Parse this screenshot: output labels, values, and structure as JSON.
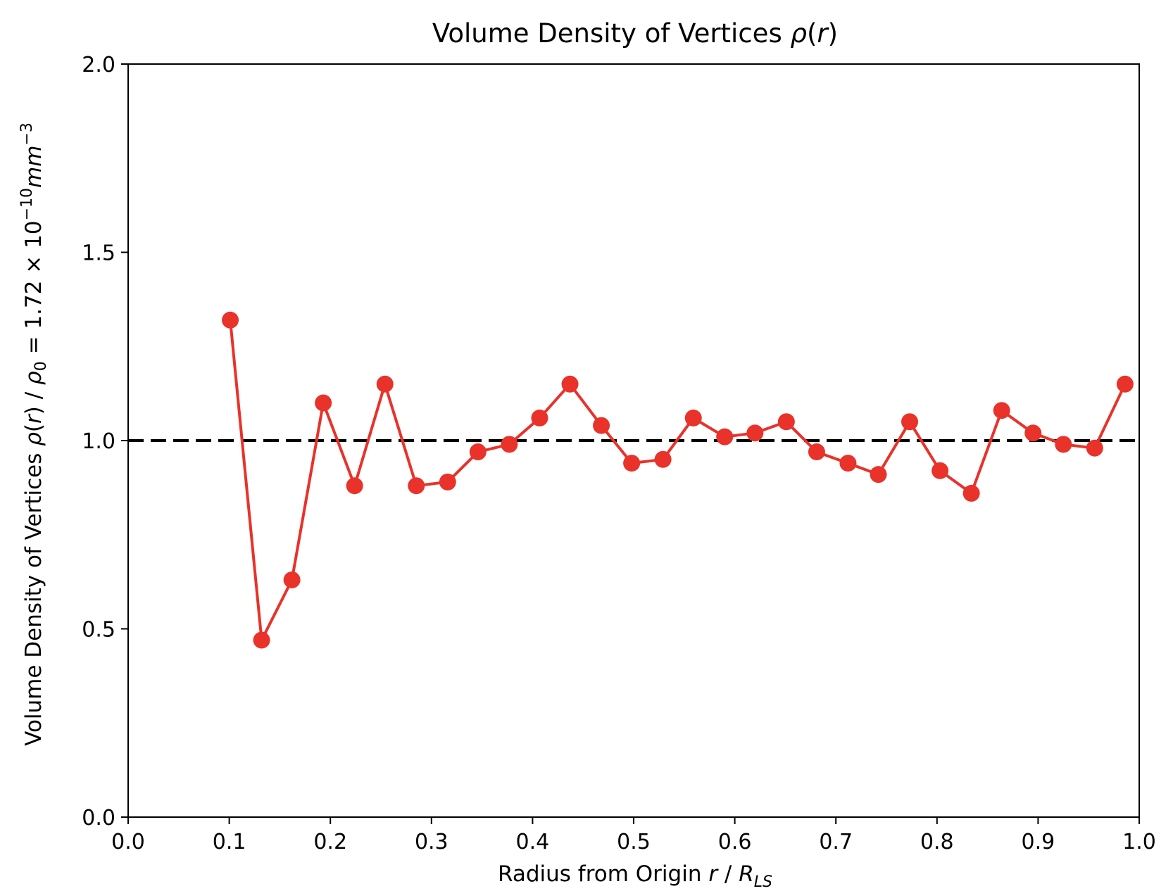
{
  "chart_data": {
    "type": "line",
    "title": "Volume Density of Vertices ρ(r)",
    "xlabel": "Radius from Origin r / R_LS",
    "ylabel": "Volume Density of Vertices ρ(r) / ρ₀ = 1.72 × 10⁻¹⁰mm⁻³",
    "xlim": [
      0.0,
      1.0
    ],
    "ylim": [
      0.0,
      2.0
    ],
    "xticks": [
      "0.0",
      "0.1",
      "0.2",
      "0.3",
      "0.4",
      "0.5",
      "0.6",
      "0.7",
      "0.8",
      "0.9",
      "1.0"
    ],
    "yticks": [
      "0.0",
      "0.5",
      "1.0",
      "1.5",
      "2.0"
    ],
    "grid": false,
    "reference_line": {
      "y": 1.0,
      "style": "dashed",
      "color": "#000000"
    },
    "series": [
      {
        "color": "#e8322a",
        "marker": "circle",
        "x": [
          0.101,
          0.132,
          0.162,
          0.193,
          0.224,
          0.254,
          0.285,
          0.316,
          0.346,
          0.377,
          0.407,
          0.437,
          0.468,
          0.498,
          0.529,
          0.559,
          0.59,
          0.62,
          0.651,
          0.681,
          0.712,
          0.742,
          0.773,
          0.803,
          0.834,
          0.864,
          0.895,
          0.925,
          0.956,
          0.986
        ],
        "y": [
          1.32,
          0.47,
          0.63,
          1.1,
          0.88,
          1.15,
          0.88,
          0.89,
          0.97,
          0.99,
          1.06,
          1.15,
          1.04,
          0.94,
          0.95,
          1.06,
          1.01,
          1.02,
          1.05,
          0.97,
          0.94,
          0.91,
          1.05,
          0.92,
          0.86,
          1.08,
          1.02,
          0.99,
          0.98,
          1.15
        ]
      }
    ]
  }
}
